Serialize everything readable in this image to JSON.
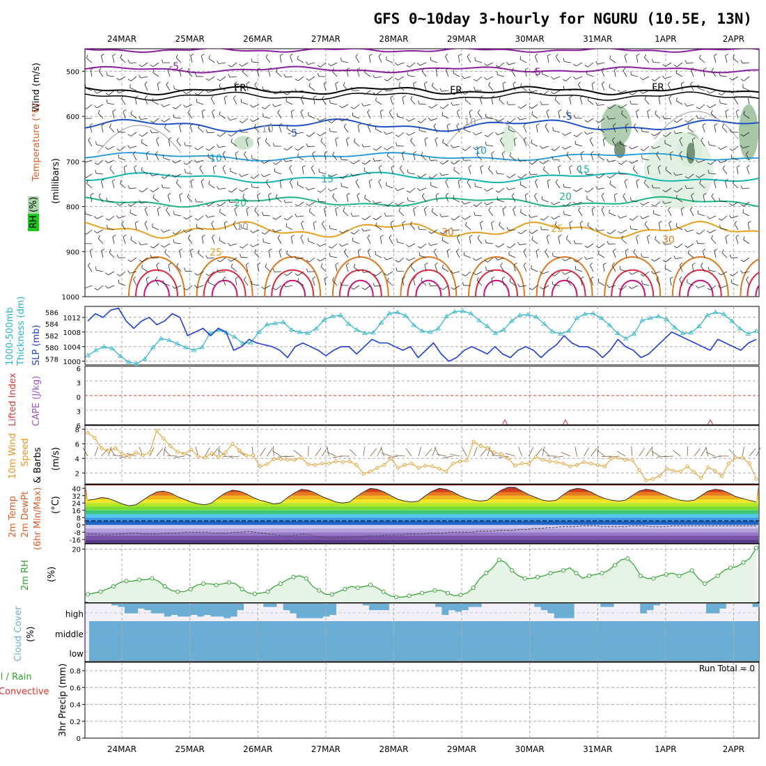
{
  "title": "GFS 0~10day 3-hourly for NGURU (10.5E, 13N)",
  "dates": [
    "24MAR",
    "25MAR",
    "26MAR",
    "27MAR",
    "28MAR",
    "29MAR",
    "30MAR",
    "31MAR",
    "1APR",
    "2APR"
  ],
  "run_total_text": "Run Total = 0",
  "colors": {
    "temperature": "#d8602a",
    "rh_box": "#1ec81e",
    "slp": "#1e3cd2",
    "thickness": "#28b4c8",
    "lifted_index": "#d23c3c",
    "cape": "#a050c8",
    "wind_speed": "#e6961e",
    "rh2m": "#2ea02e",
    "cloud": "#6aaed6",
    "convective": "#e03030",
    "total_rain": "#2ea02e",
    "contour_purple": "#8c1ea0",
    "contour_blue": "#1e50c8",
    "contour_lightblue": "#1e96dc",
    "contour_teal": "#14b4b4",
    "contour_green": "#1eb482",
    "contour_orange": "#e6a01e",
    "contour_darkorange": "#dc781e",
    "contour_red": "#dc283c",
    "contour_magenta": "#c8147a"
  },
  "chart_data": [
    {
      "panel": "upper-air",
      "type": "line",
      "ylabel_parts": [
        "Wind (m/s)",
        "Temperature (°C)",
        "RH (%)",
        "(millibars)"
      ],
      "y_ticks": [
        "500",
        "600",
        "700",
        "800",
        "900",
        "1000"
      ],
      "ylim": [
        450,
        1000
      ],
      "contour_labels": [
        {
          "text": "-5",
          "color_key": "contour_purple"
        },
        {
          "text": "-5",
          "color_key": "contour_purple"
        },
        {
          "text": "FR",
          "color_key": "black"
        },
        {
          "text": "FR",
          "color_key": "black"
        },
        {
          "text": "FR",
          "color_key": "black"
        },
        {
          "text": "-5",
          "color_key": "contour_blue"
        },
        {
          "text": "-5",
          "color_key": "contour_blue"
        },
        {
          "text": "10",
          "color_key": "contour_lightblue"
        },
        {
          "text": "10",
          "color_key": "contour_lightblue"
        },
        {
          "text": "15",
          "color_key": "contour_teal"
        },
        {
          "text": "15",
          "color_key": "contour_teal"
        },
        {
          "text": "20",
          "color_key": "contour_green"
        },
        {
          "text": "20",
          "color_key": "contour_green"
        },
        {
          "text": "30",
          "color_key": "contour_darkorange"
        },
        {
          "text": "25",
          "color_key": "contour_orange"
        },
        {
          "text": "30",
          "color_key": "contour_darkorange"
        },
        {
          "text": "25",
          "color_key": "contour_orange"
        },
        {
          "text": "10",
          "color_key": "gray"
        },
        {
          "text": "10",
          "color_key": "gray"
        },
        {
          "text": "10",
          "color_key": "gray"
        }
      ]
    },
    {
      "panel": "slp-thickness",
      "type": "line",
      "ylabel_parts": [
        "1000-500mb",
        "Thickness (dm)",
        "SLP (mb)"
      ],
      "left_ticks": [
        "586",
        "584",
        "582",
        "580",
        "578"
      ],
      "right_ticks": [
        "1012",
        "1008",
        "1004",
        "1000"
      ],
      "series": [
        {
          "name": "SLP (mb)",
          "values": [
            1011,
            1013,
            1012,
            1014,
            1014.5,
            1011,
            1009,
            1011,
            1012,
            1010,
            1011,
            1013,
            1012,
            1007,
            1008,
            1009,
            1007,
            1009,
            1008,
            1003,
            1004,
            1006,
            1005,
            1004.5,
            1004,
            1003,
            1001,
            1004,
            1005,
            1004,
            1003,
            1001.5,
            1003,
            1004,
            1004,
            1002,
            1004,
            1006,
            1005,
            1005,
            1004,
            1003,
            1004,
            1001,
            1003,
            1005,
            1002,
            1000,
            1001,
            1003,
            1004,
            1003,
            1002,
            1004,
            1002,
            1001,
            1003,
            1004,
            1003,
            1001,
            1003,
            1004.5,
            1007,
            1005,
            1004,
            1004,
            1003,
            1001,
            1003,
            1006,
            1004,
            1003,
            1001,
            1002,
            1004,
            1006,
            1008,
            1007,
            1006,
            1005,
            1004,
            1003,
            1006,
            1005,
            1004,
            1003,
            1005,
            1006
          ]
        },
        {
          "name": "1000-500mb Thickness (dm)",
          "values": [
            578.6,
            579.5,
            580.1,
            579.8,
            578.5,
            577.5,
            577.2,
            578,
            580,
            581.5,
            581.2,
            580.6,
            580,
            579.5,
            580,
            582.4,
            583,
            582.5,
            581.8,
            580.7,
            580.8,
            582.6,
            583.9,
            584.1,
            584.3,
            583,
            582.6,
            582.4,
            583.2,
            584.7,
            585.3,
            585.5,
            584,
            583,
            582.4,
            582.5,
            584.2,
            585.8,
            586,
            585.4,
            583.8,
            582.8,
            582.6,
            583.2,
            585.3,
            586.1,
            586.2,
            585.8,
            584.6,
            583.6,
            582.4,
            583,
            584.5,
            585.5,
            585.6,
            585.2,
            584,
            582.7,
            582.3,
            582.8,
            585,
            585.7,
            585.8,
            585,
            583.8,
            582.4,
            581.5,
            582.3,
            584.6,
            585,
            585.3,
            584.8,
            583.4,
            582.4,
            582.5,
            583.6,
            585.5,
            586,
            585.7,
            584.5,
            583.2,
            582.3,
            582.8
          ]
        }
      ]
    },
    {
      "panel": "stability",
      "type": "line",
      "ylabel_parts": [
        "Lifted Index",
        "CAPE (J/kg)"
      ],
      "y_ticks": [
        "6",
        "3",
        "0",
        "3",
        "6"
      ],
      "ylim": [
        -6,
        6
      ]
    },
    {
      "panel": "10m-wind",
      "type": "line",
      "ylabel_parts": [
        "10m Wind",
        "Speed",
        "& Barbs",
        "(m/s)"
      ],
      "y_ticks": [
        "8",
        "6",
        "4",
        "2"
      ],
      "ylim": [
        0.5,
        8.5
      ],
      "series": [
        {
          "name": "10m Wind Speed",
          "values": [
            7.5,
            6.8,
            5.4,
            5,
            5.4,
            4.6,
            4.3,
            4.8,
            4.4,
            4.8,
            7.8,
            6.7,
            5.7,
            4.9,
            4.6,
            5.2,
            4.3,
            4.1,
            4.7,
            4.2,
            4.8,
            6,
            5.1,
            4.4,
            4.4,
            2.9,
            3.2,
            3.9,
            3.9,
            3.8,
            3.8,
            4.1,
            3.2,
            3.1,
            3.3,
            3.3,
            3.6,
            3.5,
            3.6,
            3.1,
            1.9,
            2.2,
            2.7,
            3.1,
            4,
            2.7,
            3.1,
            3.3,
            2.7,
            3,
            2.9,
            2.6,
            2.2,
            3.3,
            3.6,
            3.7,
            6.3,
            5.7,
            5.4,
            4.8,
            4.6,
            4,
            3,
            3.3,
            3.3,
            4.2,
            3.8,
            3.6,
            3.5,
            3.3,
            2.9,
            3.1,
            3.5,
            3.3,
            3.1,
            2.9,
            4,
            4.1,
            3.8,
            3.8,
            2.4,
            1,
            1.2,
            1.6,
            2.6,
            2.3,
            2.2,
            2.9,
            2.1,
            1.3,
            2.8,
            2.3,
            1.6,
            3.3,
            4.1,
            4.1,
            3.3,
            1.2
          ]
        }
      ]
    },
    {
      "panel": "2m-temperature",
      "type": "area",
      "ylabel_parts": [
        "2m Temp",
        "2m DewPt",
        "(6hr Min/Max)",
        "(°C)"
      ],
      "y_ticks": [
        "40",
        "32",
        "24",
        "16",
        "8",
        "0",
        "-8",
        "-16"
      ],
      "ylim": [
        -20,
        44
      ],
      "series": [
        {
          "name": "2m Temp",
          "values": [
            27,
            28,
            30,
            29,
            26,
            23,
            21,
            22,
            27,
            32,
            36,
            37,
            35,
            31,
            28,
            25,
            23,
            22,
            24,
            30,
            35,
            38,
            37,
            34,
            30,
            27,
            25,
            23,
            24,
            30,
            35,
            39,
            38,
            35,
            31,
            28,
            25,
            24,
            25,
            31,
            36,
            40,
            39,
            36,
            32,
            28,
            26,
            25,
            26,
            32,
            37,
            40,
            39,
            36,
            32,
            29,
            27,
            26,
            27,
            33,
            38,
            41,
            41,
            37,
            33,
            30,
            27,
            26,
            27,
            33,
            38,
            40,
            39,
            36,
            32,
            29,
            27,
            26,
            27,
            32,
            37,
            39,
            38,
            35,
            32,
            29,
            27,
            26,
            27,
            32,
            37,
            39,
            38,
            35,
            31,
            29,
            27,
            25
          ]
        },
        {
          "name": "2m DewPt",
          "values": [
            -10,
            -10,
            -11,
            -11,
            -10,
            -10,
            -9,
            -9,
            -10,
            -10,
            -10,
            -9,
            -9,
            -9,
            -8,
            -8,
            -8,
            -8,
            -9,
            -9,
            -9,
            -8,
            -8,
            -7,
            -8,
            -9,
            -10,
            -11,
            -12,
            -12,
            -11,
            -10,
            -11,
            -13,
            -14,
            -15,
            -14,
            -14,
            -13,
            -13,
            -12,
            -12,
            -12,
            -11,
            -11,
            -11,
            -10,
            -10,
            -10,
            -9,
            -9,
            -9,
            -8,
            -8,
            -8,
            -8,
            -7,
            -7,
            -7,
            -6,
            -6,
            -6,
            -5,
            -5,
            -4,
            -4,
            -3,
            -3,
            -2,
            -2,
            -2,
            -1,
            -1,
            -1,
            -2,
            -2,
            -2,
            -2,
            -1,
            -1,
            -1,
            -2,
            -2,
            -2,
            -1,
            -1,
            -1,
            -1,
            -1,
            -1,
            -1,
            -1,
            -1,
            -1,
            -1,
            -1,
            -1
          ]
        }
      ]
    },
    {
      "panel": "2m-rh",
      "type": "area",
      "ylabel_parts": [
        "2m RH",
        "(%)"
      ],
      "y_ticks": [
        "20"
      ],
      "ylim": [
        0,
        22
      ],
      "series": [
        {
          "name": "2m RH",
          "values": [
            3,
            3.5,
            4,
            5,
            6,
            7.5,
            8,
            8,
            8.5,
            8.5,
            9,
            8,
            6,
            4.5,
            4,
            4,
            5,
            6.5,
            7,
            7,
            6.5,
            7,
            7.5,
            7,
            5,
            3.5,
            3.2,
            3.5,
            4,
            6,
            7,
            8.5,
            9.5,
            10,
            9,
            6,
            4.5,
            3,
            3,
            4,
            5,
            6,
            5.5,
            6,
            6.5,
            5.5,
            4,
            2.5,
            2,
            2,
            2.5,
            3,
            3.5,
            4,
            4.5,
            4.5,
            3.5,
            2.5,
            2.8,
            3.5,
            5.5,
            9,
            11,
            13,
            16,
            15,
            12,
            10,
            9,
            9,
            9.5,
            10,
            11,
            11.5,
            12,
            13,
            11,
            9,
            10,
            10.5,
            11,
            12,
            14,
            16,
            16.5,
            14,
            10,
            9,
            9,
            10,
            10.5,
            11,
            10,
            11,
            12,
            9,
            7,
            8.5,
            10,
            12,
            13,
            13.5,
            15,
            16.5,
            20.5
          ]
        }
      ]
    },
    {
      "panel": "cloud-cover",
      "type": "bar",
      "ylabel_parts": [
        "Cloud Cover",
        "(%)"
      ],
      "y_ticks": [
        "high",
        "middle",
        "low"
      ],
      "series": [
        {
          "name": "high cloud",
          "values": [
            0,
            0,
            0,
            0,
            0.1,
            0.2,
            0.6,
            0.6,
            0.3,
            0.4,
            0.6,
            0.6,
            0.8,
            0.7,
            0.8,
            0.8,
            0.7,
            0.8,
            0.7,
            0.8,
            0.8,
            0.9,
            0.8,
            0.4,
            0,
            0,
            0,
            0.2,
            0.2,
            0,
            0.4,
            0.6,
            0.9,
            0.9,
            0.9,
            0.9,
            0.8,
            0.7,
            0,
            0,
            0,
            0,
            0.1,
            0.4,
            0.4,
            0.4,
            0,
            0,
            0,
            0,
            0,
            0,
            0,
            0.2,
            0.7,
            0.4,
            0.5,
            0.4,
            0.2,
            0.2,
            0,
            0,
            0,
            0,
            0,
            0,
            0,
            0,
            0.2,
            0.4,
            0.6,
            0.9,
            0.9,
            0.9,
            0,
            0,
            0,
            0,
            0.2,
            0.2,
            0,
            0,
            0,
            0,
            0.6,
            0.4,
            0.1,
            0,
            0,
            0,
            0,
            0,
            0,
            0,
            0.6,
            0.6,
            0.3,
            0,
            0,
            0,
            0,
            0.2
          ]
        },
        {
          "name": "middle cloud",
          "values": [
            1,
            1
          ]
        },
        {
          "name": "low cloud",
          "values": [
            1,
            1
          ]
        }
      ]
    },
    {
      "panel": "precipitation",
      "type": "bar",
      "ylabel_parts": [
        "Total / Rain",
        "Convective",
        "3hr Precip (mm)"
      ],
      "y_ticks": [
        "0.8",
        "0.6",
        "0.4",
        "0.2",
        "0"
      ],
      "ylim": [
        0,
        0.9
      ],
      "series": [
        {
          "name": "Total / Rain",
          "values": []
        },
        {
          "name": "Convective",
          "values": []
        }
      ]
    }
  ]
}
